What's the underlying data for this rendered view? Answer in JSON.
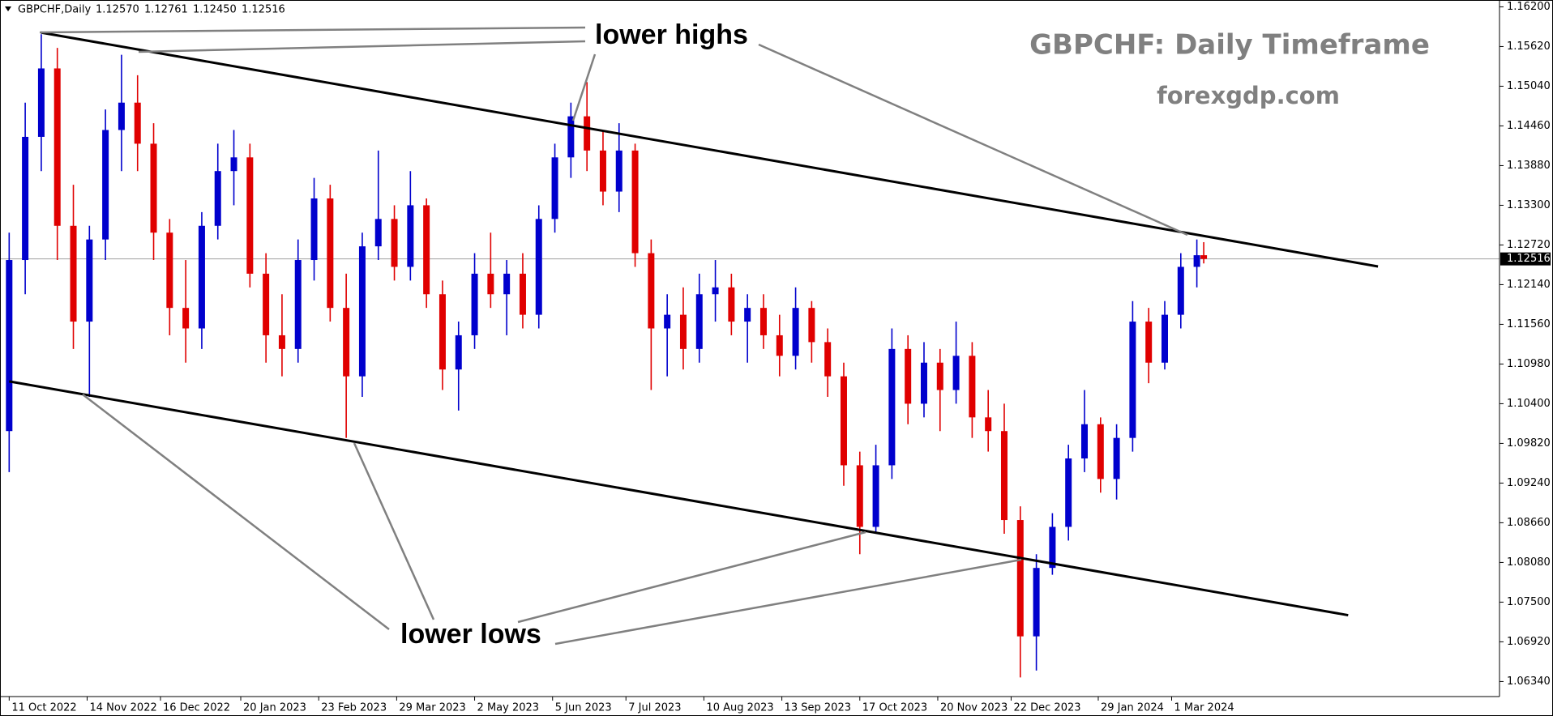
{
  "chart_data": {
    "type": "candlestick",
    "header": {
      "symbol": "GBPCHF,Daily",
      "ohlc_labels": [
        "1.12570",
        "1.12761",
        "1.12450",
        "1.12516"
      ]
    },
    "title": "GBPCHF: Daily Timeframe",
    "subtitle": "forexgdp.com",
    "annotations": [
      "lower highs",
      "lower lows"
    ],
    "up_color": "#0000cd",
    "down_color": "#e00000",
    "xlim": [
      "2022-10-07",
      "2024-07-22"
    ],
    "ylim": [
      1.0612,
      1.163
    ],
    "yticks": [
      {
        "value": 1.162,
        "label": "1.16200"
      },
      {
        "value": 1.1562,
        "label": "1.15620"
      },
      {
        "value": 1.1504,
        "label": "1.15040"
      },
      {
        "value": 1.1446,
        "label": "1.14460"
      },
      {
        "value": 1.1388,
        "label": "1.13880"
      },
      {
        "value": 1.133,
        "label": "1.13300"
      },
      {
        "value": 1.1272,
        "label": "1.12720"
      },
      {
        "value": 1.1214,
        "label": "1.12140"
      },
      {
        "value": 1.1156,
        "label": "1.11560"
      },
      {
        "value": 1.1098,
        "label": "1.10980"
      },
      {
        "value": 1.104,
        "label": "1.10400"
      },
      {
        "value": 1.0982,
        "label": "1.09820"
      },
      {
        "value": 1.0924,
        "label": "1.09240"
      },
      {
        "value": 1.0866,
        "label": "1.08660"
      },
      {
        "value": 1.0808,
        "label": "1.08080"
      },
      {
        "value": 1.075,
        "label": "1.07500"
      },
      {
        "value": 1.0692,
        "label": "1.06920"
      },
      {
        "value": 1.0634,
        "label": "1.06340"
      }
    ],
    "xticks": [
      {
        "value": "2022-10-11",
        "label": "11 Oct 2022"
      },
      {
        "value": "2022-11-14",
        "label": "14 Nov 2022"
      },
      {
        "value": "2022-12-16",
        "label": "16 Dec 2022"
      },
      {
        "value": "2023-01-20",
        "label": "20 Jan 2023"
      },
      {
        "value": "2023-02-23",
        "label": "23 Feb 2023"
      },
      {
        "value": "2023-03-29",
        "label": "29 Mar 2023"
      },
      {
        "value": "2023-05-02",
        "label": "2 May 2023"
      },
      {
        "value": "2023-06-05",
        "label": "5 Jun 2023"
      },
      {
        "value": "2023-07-07",
        "label": "7 Jul 2023"
      },
      {
        "value": "2023-08-10",
        "label": "10 Aug 2023"
      },
      {
        "value": "2023-09-13",
        "label": "13 Sep 2023"
      },
      {
        "value": "2023-10-17",
        "label": "17 Oct 2023"
      },
      {
        "value": "2023-11-20",
        "label": "20 Nov 2023"
      },
      {
        "value": "2023-12-22",
        "label": "22 Dec 2023"
      },
      {
        "value": "2024-01-29",
        "label": "29 Jan 2024"
      },
      {
        "value": "2024-03-01",
        "label": "1 Mar 2024"
      }
    ],
    "current_price": {
      "value": 1.12516,
      "label": "1.12516"
    },
    "trendlines": [
      {
        "x": [
          "2022-10-25",
          "2024-05-30"
        ],
        "y": [
          1.15824,
          1.12406
        ]
      },
      {
        "x": [
          "2022-10-11",
          "2024-05-17"
        ],
        "y": [
          1.10726,
          1.07309
        ]
      }
    ],
    "x": [
      "2022-10-11",
      "2022-10-18",
      "2022-10-25",
      "2022-11-01",
      "2022-11-08",
      "2022-11-15",
      "2022-11-22",
      "2022-11-29",
      "2022-12-06",
      "2022-12-13",
      "2022-12-20",
      "2022-12-27",
      "2023-01-03",
      "2023-01-10",
      "2023-01-17",
      "2023-01-24",
      "2023-01-31",
      "2023-02-07",
      "2023-02-14",
      "2023-02-21",
      "2023-02-28",
      "2023-03-07",
      "2023-03-14",
      "2023-03-21",
      "2023-03-28",
      "2023-04-04",
      "2023-04-11",
      "2023-04-18",
      "2023-04-25",
      "2023-05-02",
      "2023-05-09",
      "2023-05-16",
      "2023-05-23",
      "2023-05-30",
      "2023-06-06",
      "2023-06-13",
      "2023-06-20",
      "2023-06-27",
      "2023-07-04",
      "2023-07-11",
      "2023-07-18",
      "2023-07-25",
      "2023-08-01",
      "2023-08-08",
      "2023-08-15",
      "2023-08-22",
      "2023-08-29",
      "2023-09-05",
      "2023-09-12",
      "2023-09-19",
      "2023-09-26",
      "2023-10-03",
      "2023-10-10",
      "2023-10-17",
      "2023-10-24",
      "2023-10-31",
      "2023-11-07",
      "2023-11-14",
      "2023-11-21",
      "2023-11-28",
      "2023-12-05",
      "2023-12-12",
      "2023-12-19",
      "2023-12-26",
      "2024-01-02",
      "2024-01-09",
      "2024-01-16",
      "2024-01-23",
      "2024-01-30",
      "2024-02-06",
      "2024-02-13",
      "2024-02-20",
      "2024-02-27",
      "2024-03-05",
      "2024-03-12",
      "2024-03-15"
    ],
    "open": [
      1.1,
      1.125,
      1.143,
      1.153,
      1.13,
      1.116,
      1.128,
      1.144,
      1.148,
      1.142,
      1.129,
      1.118,
      1.115,
      1.13,
      1.138,
      1.14,
      1.123,
      1.114,
      1.112,
      1.125,
      1.134,
      1.118,
      1.108,
      1.127,
      1.131,
      1.124,
      1.133,
      1.12,
      1.109,
      1.114,
      1.123,
      1.12,
      1.123,
      1.117,
      1.131,
      1.14,
      1.146,
      1.141,
      1.135,
      1.141,
      1.126,
      1.115,
      1.117,
      1.112,
      1.12,
      1.121,
      1.116,
      1.118,
      1.114,
      1.111,
      1.118,
      1.113,
      1.108,
      1.095,
      1.086,
      1.095,
      1.112,
      1.104,
      1.11,
      1.106,
      1.111,
      1.102,
      1.1,
      1.087,
      1.07,
      1.08,
      1.086,
      1.096,
      1.101,
      1.093,
      1.099,
      1.116,
      1.11,
      1.117,
      1.124,
      1.1257
    ],
    "high": [
      1.129,
      1.148,
      1.158,
      1.156,
      1.136,
      1.13,
      1.147,
      1.155,
      1.152,
      1.145,
      1.131,
      1.125,
      1.132,
      1.142,
      1.144,
      1.142,
      1.126,
      1.12,
      1.128,
      1.137,
      1.136,
      1.123,
      1.129,
      1.141,
      1.133,
      1.138,
      1.134,
      1.122,
      1.116,
      1.126,
      1.129,
      1.125,
      1.126,
      1.133,
      1.142,
      1.148,
      1.151,
      1.144,
      1.145,
      1.142,
      1.128,
      1.12,
      1.121,
      1.123,
      1.125,
      1.123,
      1.12,
      1.12,
      1.117,
      1.121,
      1.119,
      1.115,
      1.11,
      1.097,
      1.098,
      1.115,
      1.114,
      1.113,
      1.112,
      1.116,
      1.113,
      1.106,
      1.104,
      1.089,
      1.082,
      1.088,
      1.098,
      1.106,
      1.102,
      1.101,
      1.119,
      1.118,
      1.119,
      1.126,
      1.128,
      1.12761
    ],
    "low": [
      1.094,
      1.12,
      1.138,
      1.125,
      1.112,
      1.105,
      1.125,
      1.138,
      1.138,
      1.125,
      1.114,
      1.11,
      1.112,
      1.128,
      1.133,
      1.121,
      1.11,
      1.108,
      1.11,
      1.122,
      1.116,
      1.099,
      1.105,
      1.125,
      1.122,
      1.122,
      1.118,
      1.106,
      1.103,
      1.112,
      1.118,
      1.114,
      1.115,
      1.115,
      1.129,
      1.137,
      1.138,
      1.133,
      1.132,
      1.124,
      1.106,
      1.108,
      1.109,
      1.11,
      1.116,
      1.114,
      1.11,
      1.112,
      1.108,
      1.109,
      1.11,
      1.105,
      1.092,
      1.082,
      1.085,
      1.093,
      1.101,
      1.102,
      1.1,
      1.104,
      1.099,
      1.097,
      1.085,
      1.064,
      1.065,
      1.079,
      1.084,
      1.094,
      1.091,
      1.09,
      1.097,
      1.107,
      1.109,
      1.115,
      1.121,
      1.1245
    ],
    "close": [
      1.125,
      1.143,
      1.153,
      1.13,
      1.116,
      1.128,
      1.144,
      1.148,
      1.142,
      1.129,
      1.118,
      1.115,
      1.13,
      1.138,
      1.14,
      1.123,
      1.114,
      1.112,
      1.125,
      1.134,
      1.118,
      1.108,
      1.127,
      1.131,
      1.124,
      1.133,
      1.12,
      1.109,
      1.114,
      1.123,
      1.12,
      1.123,
      1.117,
      1.131,
      1.14,
      1.146,
      1.141,
      1.135,
      1.141,
      1.126,
      1.115,
      1.117,
      1.112,
      1.12,
      1.121,
      1.116,
      1.118,
      1.114,
      1.111,
      1.118,
      1.113,
      1.108,
      1.095,
      1.086,
      1.095,
      1.112,
      1.104,
      1.11,
      1.106,
      1.111,
      1.102,
      1.1,
      1.087,
      1.07,
      1.08,
      1.086,
      1.096,
      1.101,
      1.093,
      1.099,
      1.116,
      1.11,
      1.117,
      1.124,
      1.1257,
      1.12516
    ]
  }
}
